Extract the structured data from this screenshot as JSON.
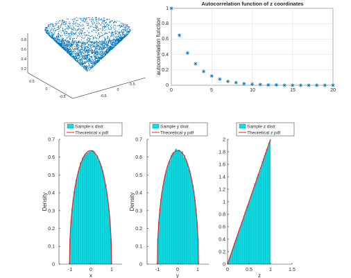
{
  "chart_data": [
    {
      "type": "scatter",
      "title": "",
      "zlim": [
        0,
        1
      ],
      "z_ticks": [
        "0.2",
        "0.4",
        "0.6",
        "0.8"
      ],
      "x_ticks": [
        "0.5",
        "0",
        "-0.5"
      ],
      "y_ticks": [
        "-0.5",
        "0",
        "0.5"
      ],
      "description_points": "uniform points on a cone surface (z from 0 to 1)",
      "color": "#0072bd"
    },
    {
      "type": "scatter",
      "title": "Autocorrelation function of z coordinates",
      "ylabel": "autocorrelation function",
      "xlabel": "",
      "xlim": [
        0,
        20
      ],
      "ylim": [
        0,
        1
      ],
      "x_ticks": [
        "0",
        "5",
        "10",
        "15",
        "20"
      ],
      "y_ticks": [
        "0",
        "0.2",
        "0.4",
        "0.6",
        "0.8",
        "1"
      ],
      "grid": true,
      "marker": "*",
      "color": "#0072bd",
      "x": [
        0,
        1,
        2,
        3,
        4,
        5,
        6,
        7,
        8,
        9,
        10,
        11,
        12,
        13,
        14,
        15,
        16,
        17,
        18,
        19,
        20
      ],
      "y": [
        1.0,
        0.65,
        0.42,
        0.28,
        0.18,
        0.12,
        0.08,
        0.05,
        0.035,
        0.02,
        0.015,
        0.01,
        0.005,
        0.005,
        0.0,
        0.0,
        0.0,
        0.0,
        0.0,
        0.0,
        0.0
      ]
    },
    {
      "type": "bar",
      "series": [
        {
          "name": "Sample x distr.",
          "kind": "histogram"
        },
        {
          "name": "Theoretical x pdf",
          "kind": "line"
        }
      ],
      "xlabel": "x",
      "ylabel": "Density",
      "xlim": [
        -1.5,
        1.5
      ],
      "ylim": [
        0,
        0.7
      ],
      "x_ticks": [
        "-1",
        "0",
        "1"
      ],
      "y_ticks": [
        "0",
        "0.1",
        "0.2",
        "0.3",
        "0.4",
        "0.5",
        "0.6",
        "0.7"
      ],
      "legend": "top",
      "bar_color": "#00e5ee",
      "line_color": "#e8202a",
      "pdf_peak": 0.637
    },
    {
      "type": "bar",
      "series": [
        {
          "name": "Sample y distr.",
          "kind": "histogram"
        },
        {
          "name": "Theoretical y pdf",
          "kind": "line"
        }
      ],
      "xlabel": "y",
      "ylabel": "Density",
      "xlim": [
        -1.5,
        1.5
      ],
      "ylim": [
        0,
        0.7
      ],
      "x_ticks": [
        "-1",
        "0",
        "1"
      ],
      "y_ticks": [
        "0",
        "0.1",
        "0.2",
        "0.3",
        "0.4",
        "0.5",
        "0.6",
        "0.7"
      ],
      "legend": "top",
      "bar_color": "#00e5ee",
      "line_color": "#e8202a",
      "pdf_peak": 0.637
    },
    {
      "type": "bar",
      "series": [
        {
          "name": "Sample z distr.",
          "kind": "histogram"
        },
        {
          "name": "Theoretical z pdf",
          "kind": "line"
        }
      ],
      "xlabel": "z",
      "ylabel": "",
      "xlim": [
        0,
        1.5
      ],
      "ylim": [
        0,
        2
      ],
      "x_ticks": [
        "0",
        "0.5",
        "1",
        "1.5"
      ],
      "y_ticks": [
        "0",
        "0.2",
        "0.4",
        "0.6",
        "0.8",
        "1",
        "1.2",
        "1.4",
        "1.6",
        "1.8",
        "2"
      ],
      "legend": "top",
      "bar_color": "#00e5ee",
      "line_color": "#e8202a"
    }
  ]
}
